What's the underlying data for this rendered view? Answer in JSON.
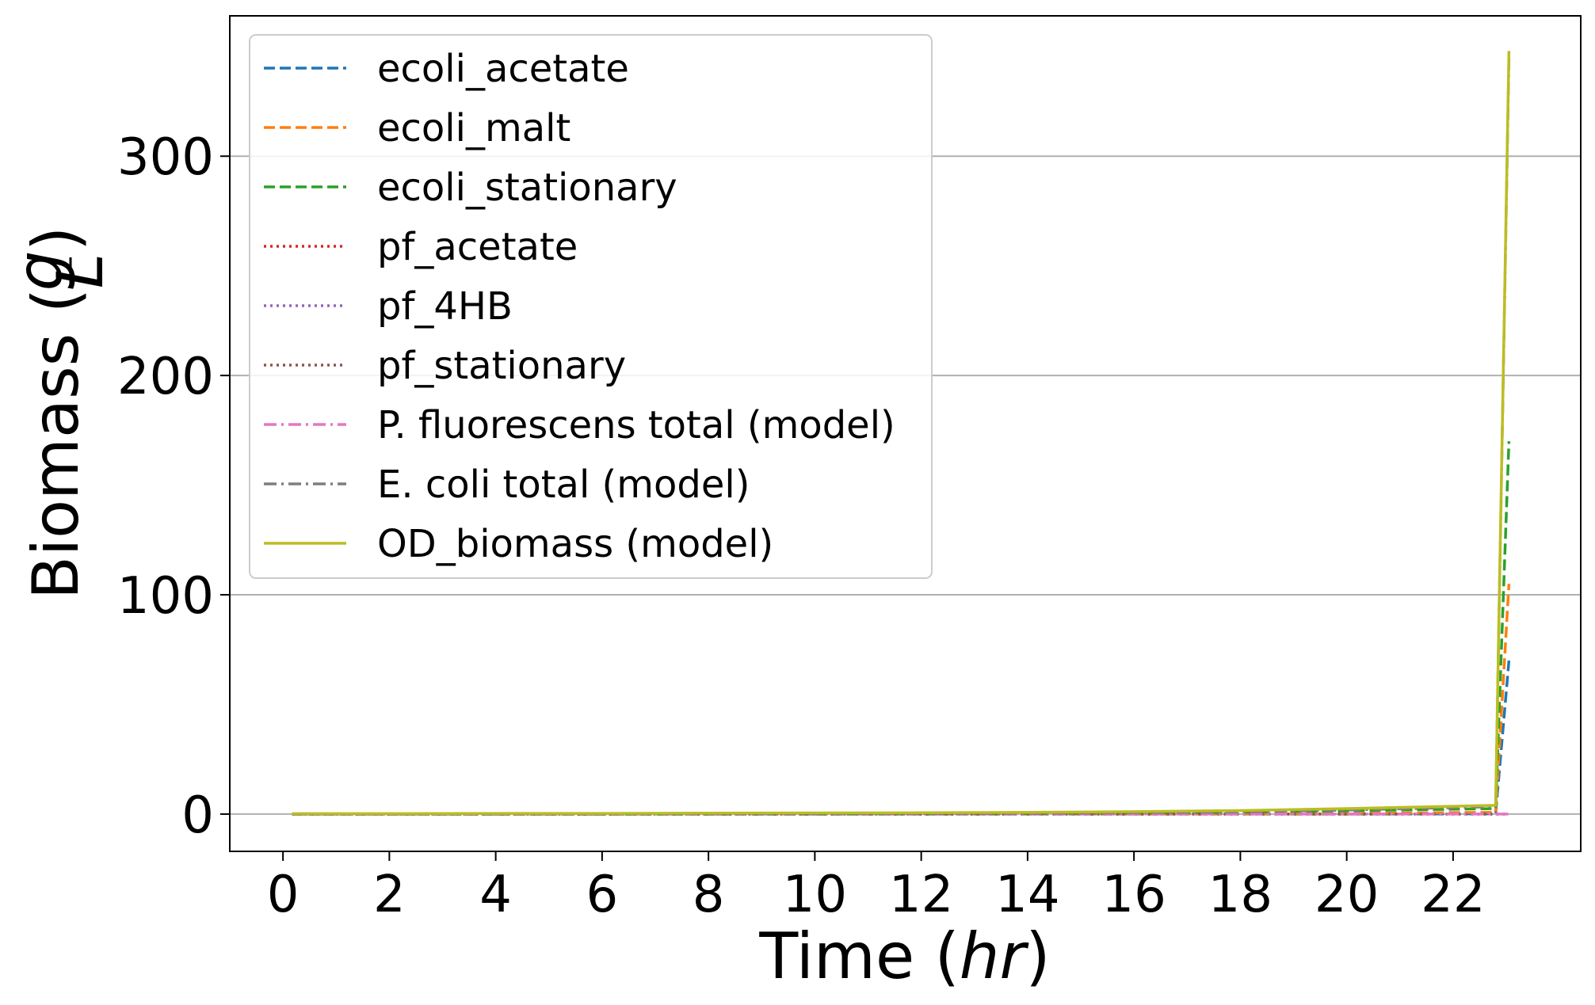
{
  "chart_data": {
    "type": "line",
    "xlabel_text": "Time (",
    "xlabel_unit": "hr",
    "xlabel_close": ")",
    "ylabel_text": "Biomass (",
    "ylabel_num": "g",
    "ylabel_den": "L",
    "ylabel_close": ")",
    "xlim": [
      -1.0,
      24.4
    ],
    "ylim": [
      -17,
      364
    ],
    "xticks": [
      0,
      2,
      4,
      6,
      8,
      10,
      12,
      14,
      16,
      18,
      20,
      22
    ],
    "xtick_labels": [
      "0",
      "2",
      "4",
      "6",
      "8",
      "10",
      "12",
      "14",
      "16",
      "18",
      "20",
      "22"
    ],
    "yticks": [
      0,
      100,
      200,
      300
    ],
    "ytick_labels": [
      "0",
      "100",
      "200",
      "300"
    ],
    "grid": "y",
    "legend_position": "upper-left",
    "x": [
      0.17,
      2,
      4,
      6,
      8,
      10,
      12,
      14,
      16,
      18,
      20,
      22.8,
      23.05
    ],
    "series": [
      {
        "name": "ecoli_acetate",
        "color": "#1f77b4",
        "dash": "dashed",
        "values": [
          0,
          0,
          0,
          0,
          0,
          0,
          0,
          0,
          0,
          0,
          0,
          0.1,
          70
        ]
      },
      {
        "name": "ecoli_malt",
        "color": "#ff7f0e",
        "dash": "dashed",
        "values": [
          0,
          0,
          0,
          0,
          0,
          0,
          0,
          0,
          0,
          0.1,
          0.3,
          0.8,
          105
        ]
      },
      {
        "name": "ecoli_stationary",
        "color": "#2ca02c",
        "dash": "dashed",
        "values": [
          0,
          0,
          0,
          0,
          0,
          0,
          0.1,
          0.2,
          0.4,
          0.8,
          1.5,
          2.5,
          170
        ]
      },
      {
        "name": "pf_acetate",
        "color": "#d62728",
        "dash": "dotted",
        "values": [
          0,
          0,
          0,
          0,
          0,
          0,
          0,
          0,
          0,
          0,
          0,
          0,
          0
        ]
      },
      {
        "name": "pf_4HB",
        "color": "#9467bd",
        "dash": "dotted",
        "values": [
          0,
          0,
          0,
          0,
          0,
          0,
          0,
          0,
          0,
          0,
          0,
          0,
          0
        ]
      },
      {
        "name": "pf_stationary",
        "color": "#8c564b",
        "dash": "dotted",
        "values": [
          0,
          0,
          0,
          0,
          0,
          0,
          0,
          0,
          0,
          0,
          0,
          0,
          0
        ]
      },
      {
        "name": "P. fluorescens total (model)",
        "color": "#e377c2",
        "dash": "dashdot",
        "values": [
          0,
          0,
          0,
          0,
          0,
          0,
          0,
          0,
          0,
          0,
          0,
          0,
          0
        ]
      },
      {
        "name": "E. coli total (model)",
        "color": "#7f7f7f",
        "dash": "dashdot",
        "values": [
          0,
          0,
          0,
          0,
          0.1,
          0.1,
          0.2,
          0.3,
          0.6,
          1.0,
          1.8,
          3.4,
          345
        ]
      },
      {
        "name": "OD_biomass (model)",
        "color": "#bcbd22",
        "dash": "solid",
        "values": [
          0.2,
          0.2,
          0.3,
          0.3,
          0.4,
          0.5,
          0.6,
          0.8,
          1.1,
          1.6,
          2.5,
          4.0,
          348
        ]
      }
    ]
  }
}
